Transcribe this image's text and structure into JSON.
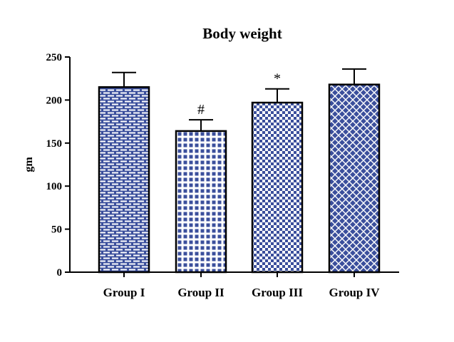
{
  "chart_data": {
    "type": "bar",
    "title": "Body weight",
    "xlabel": "",
    "ylabel": "gm",
    "ylim": [
      0,
      250
    ],
    "yticks": [
      "0",
      "50",
      "100",
      "150",
      "200",
      "250"
    ],
    "ytick_values": [
      0,
      50,
      100,
      150,
      200,
      250
    ],
    "categories": [
      "Group I",
      "Group II",
      "Group III",
      "Group IV"
    ],
    "values": [
      215,
      164,
      197,
      218
    ],
    "error_upper": [
      232,
      177,
      213,
      236
    ],
    "annotations": [
      "",
      "#",
      "*",
      ""
    ],
    "patterns": [
      "brick",
      "grid",
      "checker",
      "diamond"
    ],
    "bar_color": "#3b4f9c",
    "grid": false
  }
}
